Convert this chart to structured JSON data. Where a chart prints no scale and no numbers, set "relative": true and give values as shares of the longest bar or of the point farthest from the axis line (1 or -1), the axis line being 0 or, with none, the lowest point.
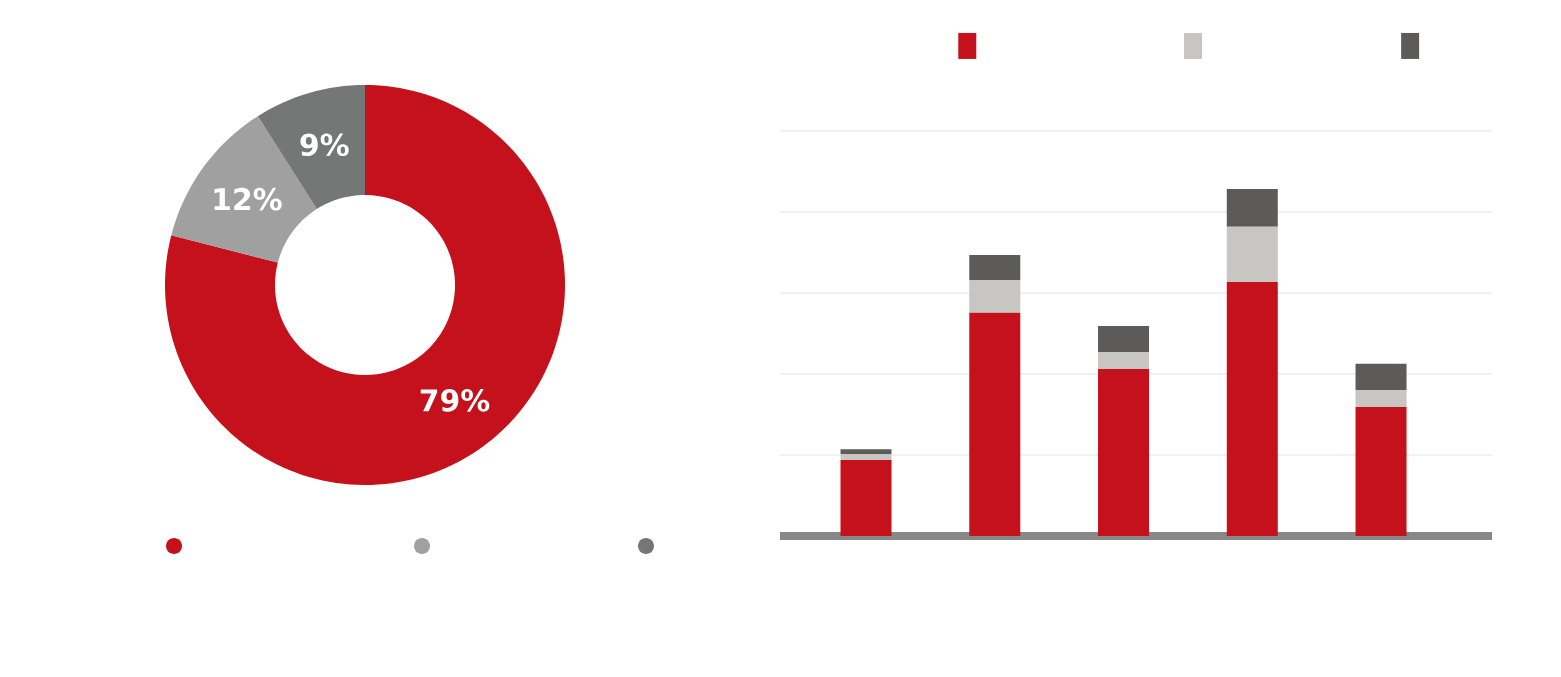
{
  "chart_data": [
    {
      "type": "donut",
      "categories": [
        null,
        null,
        null
      ],
      "values": [
        79,
        12,
        9
      ],
      "colors": [
        "#c4111b",
        "#a0a0a0",
        "#757776"
      ],
      "value_labels": [
        "79%",
        "12%",
        "9%"
      ]
    },
    {
      "type": "bar",
      "relative": true,
      "stacked": true,
      "categories": [
        null,
        null,
        null,
        null,
        null
      ],
      "grid": "y",
      "series": [
        {
          "color": "#c4111b",
          "values": [
            0.219,
            0.643,
            0.481,
            0.732,
            0.372
          ]
        },
        {
          "color": "#c8c6c2",
          "values": [
            0.017,
            0.095,
            0.049,
            0.159,
            0.049
          ]
        },
        {
          "color": "#5d5b59",
          "values": [
            0.014,
            0.072,
            0.075,
            0.109,
            0.075
          ]
        }
      ]
    }
  ]
}
